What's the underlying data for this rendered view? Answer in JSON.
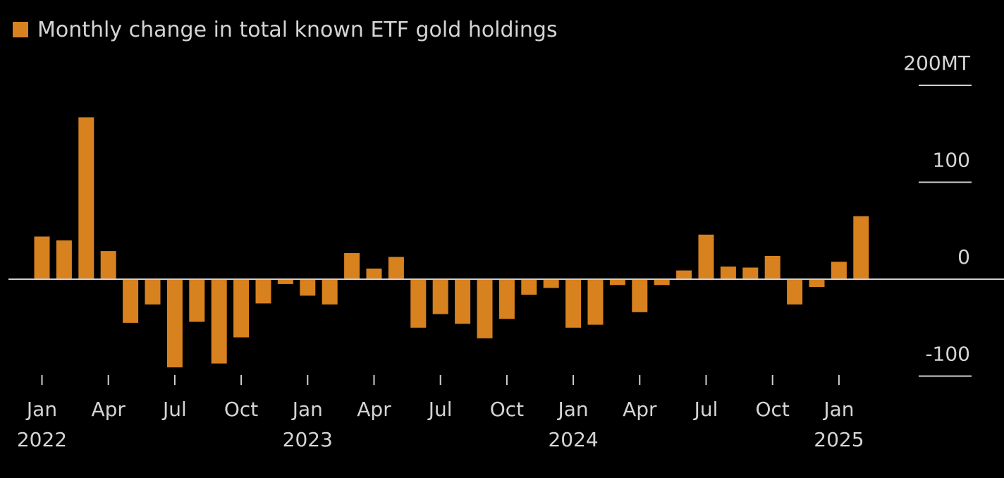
{
  "legend": {
    "label": "Monthly change in total known ETF gold holdings",
    "color": "#d8811f"
  },
  "colors": {
    "bar": "#d8811f",
    "axis": "#cfcfcf",
    "background": "#000000",
    "text": "#d4d4d4"
  },
  "chart_data": {
    "type": "bar",
    "title": "",
    "unit": "MT",
    "ylim": [
      -100,
      200
    ],
    "yticks": [
      {
        "value": 200,
        "label": "200MT"
      },
      {
        "value": 100,
        "label": "100"
      },
      {
        "value": 0,
        "label": "0"
      },
      {
        "value": -100,
        "label": "-100"
      }
    ],
    "y_axis_position": "right",
    "grid": false,
    "xticks": [
      {
        "index": 0,
        "label": "Jan",
        "year": "2022"
      },
      {
        "index": 3,
        "label": "Apr",
        "year": ""
      },
      {
        "index": 6,
        "label": "Jul",
        "year": ""
      },
      {
        "index": 9,
        "label": "Oct",
        "year": ""
      },
      {
        "index": 12,
        "label": "Jan",
        "year": "2023"
      },
      {
        "index": 15,
        "label": "Apr",
        "year": ""
      },
      {
        "index": 18,
        "label": "Jul",
        "year": ""
      },
      {
        "index": 21,
        "label": "Oct",
        "year": ""
      },
      {
        "index": 24,
        "label": "Jan",
        "year": "2024"
      },
      {
        "index": 27,
        "label": "Apr",
        "year": ""
      },
      {
        "index": 30,
        "label": "Jul",
        "year": ""
      },
      {
        "index": 33,
        "label": "Oct",
        "year": ""
      },
      {
        "index": 36,
        "label": "Jan",
        "year": "2025"
      }
    ],
    "categories": [
      "2022-01",
      "2022-02",
      "2022-03",
      "2022-04",
      "2022-05",
      "2022-06",
      "2022-07",
      "2022-08",
      "2022-09",
      "2022-10",
      "2022-11",
      "2022-12",
      "2023-01",
      "2023-02",
      "2023-03",
      "2023-04",
      "2023-05",
      "2023-06",
      "2023-07",
      "2023-08",
      "2023-09",
      "2023-10",
      "2023-11",
      "2023-12",
      "2024-01",
      "2024-02",
      "2024-03",
      "2024-04",
      "2024-05",
      "2024-06",
      "2024-07",
      "2024-08",
      "2024-09",
      "2024-10",
      "2024-11",
      "2024-12",
      "2025-01",
      "2025-02"
    ],
    "values": [
      44,
      40,
      167,
      29,
      -45,
      -26,
      -91,
      -44,
      -87,
      -60,
      -25,
      -5,
      -17,
      -26,
      27,
      11,
      23,
      -50,
      -36,
      -46,
      -61,
      -41,
      -16,
      -9,
      -50,
      -47,
      -6,
      -34,
      -6,
      9,
      46,
      13,
      12,
      24,
      -26,
      -8,
      18,
      65
    ]
  }
}
